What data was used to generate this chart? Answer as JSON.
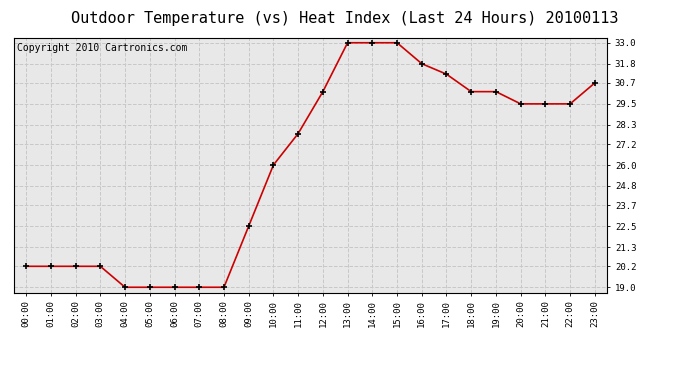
{
  "title": "Outdoor Temperature (vs) Heat Index (Last 24 Hours) 20100113",
  "copyright": "Copyright 2010 Cartronics.com",
  "x_labels": [
    "00:00",
    "01:00",
    "02:00",
    "03:00",
    "04:00",
    "05:00",
    "06:00",
    "07:00",
    "08:00",
    "09:00",
    "10:00",
    "11:00",
    "12:00",
    "13:00",
    "14:00",
    "15:00",
    "16:00",
    "17:00",
    "18:00",
    "19:00",
    "20:00",
    "21:00",
    "22:00",
    "23:00"
  ],
  "y_values": [
    20.2,
    20.2,
    20.2,
    20.2,
    19.0,
    19.0,
    19.0,
    19.0,
    19.0,
    22.5,
    26.0,
    27.8,
    30.2,
    33.0,
    33.0,
    33.0,
    31.8,
    31.2,
    30.2,
    30.2,
    29.5,
    29.5,
    29.5,
    30.7
  ],
  "y_ticks": [
    19.0,
    20.2,
    21.3,
    22.5,
    23.7,
    24.8,
    26.0,
    27.2,
    28.3,
    29.5,
    30.7,
    31.8,
    33.0
  ],
  "y_min": 18.7,
  "y_max": 33.3,
  "line_color": "#cc0000",
  "marker": "+",
  "marker_color": "#000000",
  "bg_color": "#ffffff",
  "plot_bg_color": "#e8e8e8",
  "grid_color": "#c8c8c8",
  "title_fontsize": 11,
  "copyright_fontsize": 7
}
